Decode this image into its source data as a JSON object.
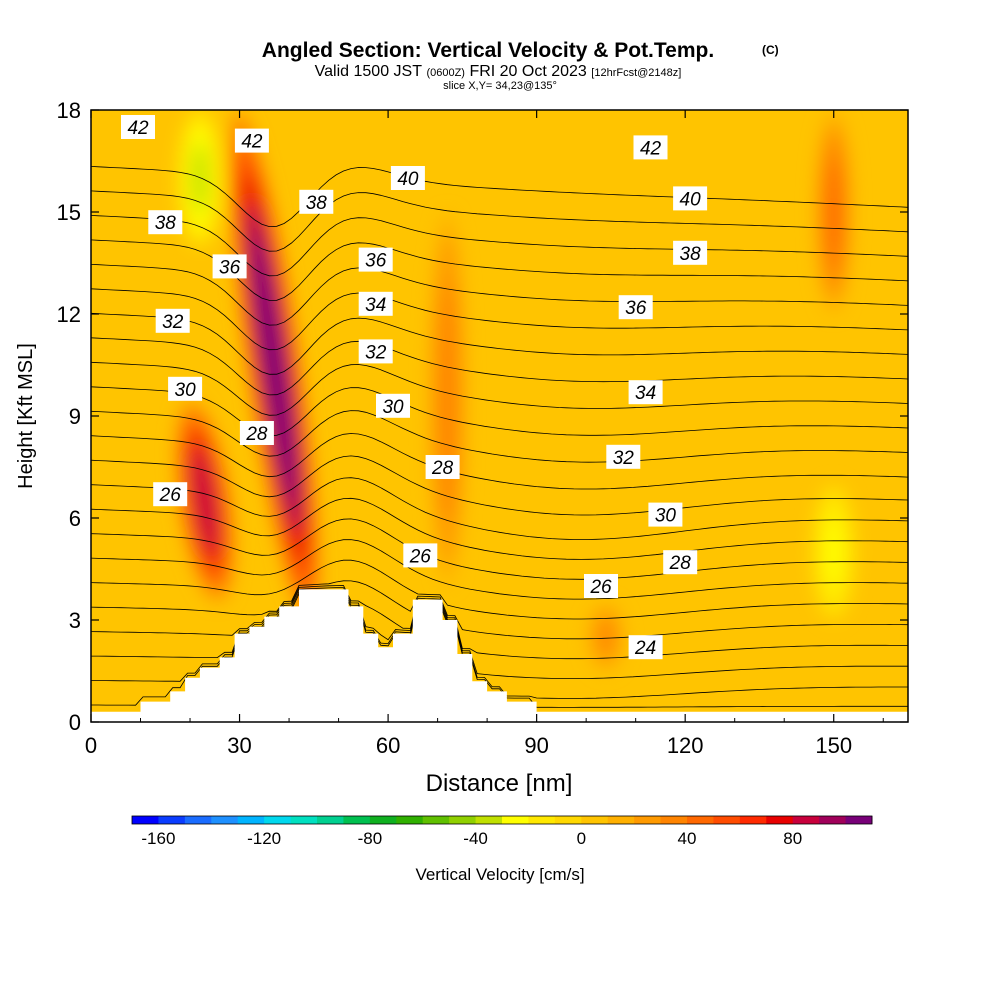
{
  "header": {
    "title": "Angled Section: Vertical Velocity & Pot.Temp.",
    "title_tag": "(C)",
    "valid_prefix": "Valid 1500 JST",
    "valid_z": "(0600Z)",
    "valid_date": "FRI 20 Oct 2023",
    "valid_fcst": "[12hrFcst@2148z]",
    "slice": "slice X,Y= 34,23@135°"
  },
  "chart_data": {
    "type": "heatmap",
    "title": "Angled Section: Vertical Velocity & Pot.Temp.",
    "xlabel": "Distance [nm]",
    "ylabel": "Height [Kft MSL]",
    "xlim": [
      0,
      165
    ],
    "ylim": [
      0,
      18
    ],
    "x_ticks": [
      0,
      30,
      60,
      90,
      120,
      150
    ],
    "y_ticks": [
      0,
      3,
      6,
      9,
      12,
      15,
      18
    ],
    "grid": false,
    "terrain": [
      [
        0,
        0.3
      ],
      [
        10,
        0.3
      ],
      [
        10,
        0.6
      ],
      [
        16,
        0.6
      ],
      [
        16,
        0.9
      ],
      [
        19,
        0.9
      ],
      [
        19,
        1.3
      ],
      [
        22,
        1.3
      ],
      [
        22,
        1.6
      ],
      [
        26,
        1.6
      ],
      [
        26,
        1.9
      ],
      [
        29,
        1.9
      ],
      [
        29,
        2.6
      ],
      [
        32,
        2.6
      ],
      [
        32,
        2.8
      ],
      [
        35,
        2.8
      ],
      [
        35,
        3.1
      ],
      [
        38,
        3.1
      ],
      [
        38,
        3.4
      ],
      [
        42,
        3.4
      ],
      [
        42,
        3.9
      ],
      [
        52,
        3.9
      ],
      [
        52,
        3.4
      ],
      [
        55,
        3.4
      ],
      [
        55,
        2.6
      ],
      [
        58,
        2.6
      ],
      [
        58,
        2.2
      ],
      [
        61,
        2.2
      ],
      [
        61,
        2.6
      ],
      [
        65,
        2.6
      ],
      [
        65,
        3.6
      ],
      [
        71,
        3.6
      ],
      [
        71,
        3.0
      ],
      [
        74,
        3.0
      ],
      [
        74,
        2.0
      ],
      [
        77,
        2.0
      ],
      [
        77,
        1.2
      ],
      [
        80,
        1.2
      ],
      [
        80,
        0.9
      ],
      [
        84,
        0.9
      ],
      [
        84,
        0.6
      ],
      [
        90,
        0.6
      ],
      [
        90,
        0.3
      ],
      [
        165,
        0.3
      ]
    ],
    "velocity_features": [
      {
        "x": 23,
        "z_bottom": 3.5,
        "z_top": 9.5,
        "max": 85
      },
      {
        "x": 37,
        "z_bottom": 2.8,
        "z_top": 18,
        "max": 110
      },
      {
        "x": 72,
        "z_bottom": 4,
        "z_top": 15,
        "max": 35
      },
      {
        "x": 150,
        "z_bottom": 12,
        "z_top": 18,
        "max": 45
      },
      {
        "x": 104,
        "z_bottom": 1.5,
        "z_top": 3.5,
        "max": 30
      },
      {
        "x": 22,
        "z_bottom": 14,
        "z_top": 18,
        "max": -35
      },
      {
        "x": 150,
        "z_bottom": 3,
        "z_top": 7,
        "max": -22
      }
    ],
    "contour_labels": [
      {
        "text": "42",
        "x": 9.5,
        "z": 17.5
      },
      {
        "text": "42",
        "x": 32.5,
        "z": 17.1
      },
      {
        "text": "42",
        "x": 113,
        "z": 16.9
      },
      {
        "text": "40",
        "x": 64,
        "z": 16.0
      },
      {
        "text": "40",
        "x": 121,
        "z": 15.4
      },
      {
        "text": "38",
        "x": 15,
        "z": 14.7
      },
      {
        "text": "38",
        "x": 45.5,
        "z": 15.3
      },
      {
        "text": "38",
        "x": 121,
        "z": 13.8
      },
      {
        "text": "36",
        "x": 28,
        "z": 13.4
      },
      {
        "text": "36",
        "x": 57.5,
        "z": 13.6
      },
      {
        "text": "36",
        "x": 110,
        "z": 12.2
      },
      {
        "text": "34",
        "x": 57.5,
        "z": 12.3
      },
      {
        "text": "34",
        "x": 112,
        "z": 9.7
      },
      {
        "text": "32",
        "x": 16.5,
        "z": 11.8
      },
      {
        "text": "32",
        "x": 57.5,
        "z": 10.9
      },
      {
        "text": "32",
        "x": 107.5,
        "z": 7.8
      },
      {
        "text": "30",
        "x": 19,
        "z": 9.8
      },
      {
        "text": "30",
        "x": 61,
        "z": 9.3
      },
      {
        "text": "30",
        "x": 116,
        "z": 6.1
      },
      {
        "text": "28",
        "x": 33.5,
        "z": 8.5
      },
      {
        "text": "28",
        "x": 71,
        "z": 7.5
      },
      {
        "text": "28",
        "x": 119,
        "z": 4.7
      },
      {
        "text": "26",
        "x": 16,
        "z": 6.7
      },
      {
        "text": "26",
        "x": 66.5,
        "z": 4.9
      },
      {
        "text": "26",
        "x": 103,
        "z": 4.0
      },
      {
        "text": "24",
        "x": 112,
        "z": 2.2
      }
    ],
    "colorbar": {
      "label": "Vertical Velocity [cm/s]",
      "min": -170,
      "max": 110,
      "step": 10,
      "tick_values": [
        -160,
        -120,
        -80,
        -40,
        0,
        40,
        80
      ],
      "tick_labels": [
        "-160",
        "-120",
        "-80",
        "-40",
        "0",
        "40",
        "80"
      ],
      "colors": [
        "#0000ff",
        "#0a3cff",
        "#1a6cff",
        "#1e90ff",
        "#00b4ff",
        "#00d8ee",
        "#00e0c0",
        "#00d090",
        "#00c050",
        "#10b020",
        "#30b000",
        "#60c000",
        "#90d000",
        "#c0e000",
        "#ffff00",
        "#ffe800",
        "#ffd800",
        "#ffc400",
        "#ffb000",
        "#ff9a00",
        "#ff8400",
        "#ff6800",
        "#ff4c00",
        "#ff2a00",
        "#e80000",
        "#c8003c",
        "#a0005a",
        "#780078"
      ]
    }
  }
}
